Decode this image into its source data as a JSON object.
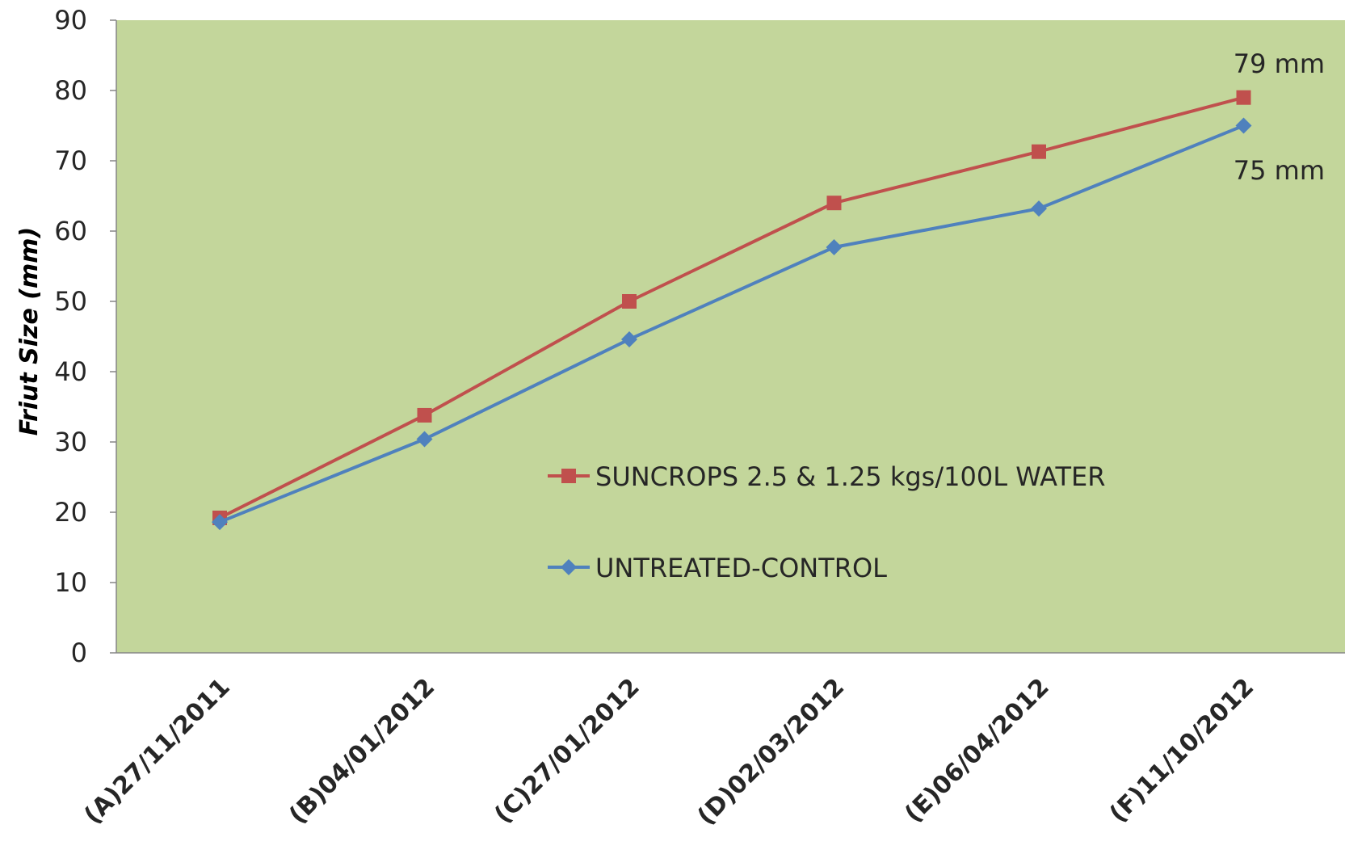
{
  "chart_data": {
    "type": "line",
    "title": "",
    "xlabel": "",
    "ylabel": "Friut Size (mm)",
    "ylim": [
      0,
      90
    ],
    "yticks": [
      0,
      10,
      20,
      30,
      40,
      50,
      60,
      70,
      80,
      90
    ],
    "categories": [
      "(A)27/11/2011",
      "(B)04/01/2012",
      "(C)27/01/2012",
      "(D)02/03/2012",
      "(E)06/04/2012",
      "(F)11/10/2012"
    ],
    "series": [
      {
        "name": "SUNCROPS 2.5 & 1.25 kgs/100L WATER",
        "values": [
          19.2,
          33.8,
          50.0,
          64.0,
          71.3,
          79.0
        ],
        "color": "#C0504D",
        "marker": "square"
      },
      {
        "name": "UNTREATED-CONTROL",
        "values": [
          18.6,
          30.4,
          44.6,
          57.7,
          63.2,
          75.0
        ],
        "color": "#4F81BD",
        "marker": "diamond"
      }
    ],
    "annotations": [
      "79 mm",
      "75 mm"
    ],
    "plot_background": "#C3D69B",
    "grid": false,
    "legend_position": "center-right"
  }
}
